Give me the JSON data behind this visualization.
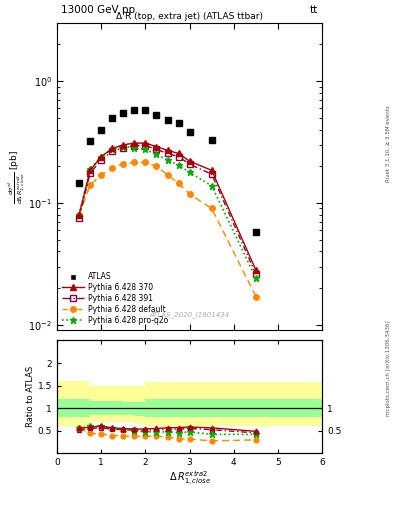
{
  "title_top": "13000 GeV pp",
  "title_right": "tt",
  "plot_title": "Δ R (top, extra jet) (ATLAS ttbar)",
  "watermark": "ATLAS_2020_I1801434",
  "rivet_label": "Rivet 3.1.10, ≥ 3.5M events",
  "mcplots_label": "mcplots.cern.ch [arXiv:1306.3436]",
  "xlim": [
    0,
    6
  ],
  "ylim_main": [
    0.009,
    3.0
  ],
  "atlas_x": [
    0.5,
    0.75,
    1.0,
    1.25,
    1.5,
    1.75,
    2.0,
    2.25,
    2.5,
    2.75,
    3.0,
    3.5,
    4.5
  ],
  "atlas_y": [
    0.145,
    0.32,
    0.4,
    0.5,
    0.55,
    0.58,
    0.58,
    0.53,
    0.48,
    0.45,
    0.38,
    0.33,
    0.058
  ],
  "py370_x": [
    0.5,
    0.75,
    1.0,
    1.25,
    1.5,
    1.75,
    2.0,
    2.25,
    2.5,
    2.75,
    3.0,
    3.5,
    4.5
  ],
  "py370_y": [
    0.08,
    0.185,
    0.24,
    0.28,
    0.3,
    0.31,
    0.31,
    0.29,
    0.27,
    0.255,
    0.22,
    0.185,
    0.028
  ],
  "py391_x": [
    0.5,
    0.75,
    1.0,
    1.25,
    1.5,
    1.75,
    2.0,
    2.25,
    2.5,
    2.75,
    3.0,
    3.5,
    4.5
  ],
  "py391_y": [
    0.075,
    0.175,
    0.225,
    0.265,
    0.285,
    0.295,
    0.295,
    0.275,
    0.255,
    0.24,
    0.208,
    0.172,
    0.026
  ],
  "pydef_x": [
    0.5,
    0.75,
    1.0,
    1.25,
    1.5,
    1.75,
    2.0,
    2.25,
    2.5,
    2.75,
    3.0,
    3.5,
    4.5
  ],
  "pydef_y": [
    0.08,
    0.14,
    0.17,
    0.195,
    0.21,
    0.215,
    0.215,
    0.2,
    0.17,
    0.145,
    0.118,
    0.09,
    0.017
  ],
  "pyq2o_x": [
    0.5,
    0.75,
    1.0,
    1.25,
    1.5,
    1.75,
    2.0,
    2.25,
    2.5,
    2.75,
    3.0,
    3.5,
    4.5
  ],
  "pyq2o_y": [
    0.08,
    0.19,
    0.24,
    0.275,
    0.29,
    0.285,
    0.275,
    0.25,
    0.225,
    0.205,
    0.178,
    0.138,
    0.024
  ],
  "ratio_py370": [
    0.55,
    0.578,
    0.6,
    0.56,
    0.545,
    0.534,
    0.534,
    0.547,
    0.563,
    0.567,
    0.579,
    0.561,
    0.483
  ],
  "ratio_py391": [
    0.517,
    0.547,
    0.563,
    0.53,
    0.518,
    0.509,
    0.509,
    0.519,
    0.531,
    0.533,
    0.547,
    0.521,
    0.448
  ],
  "ratio_pydef": [
    0.552,
    0.438,
    0.425,
    0.39,
    0.382,
    0.371,
    0.371,
    0.377,
    0.354,
    0.322,
    0.311,
    0.273,
    0.293
  ],
  "ratio_pyq2o": [
    0.552,
    0.594,
    0.6,
    0.55,
    0.527,
    0.491,
    0.474,
    0.472,
    0.469,
    0.456,
    0.468,
    0.418,
    0.414
  ],
  "step_edges": [
    0.0,
    0.5,
    0.75,
    1.0,
    1.25,
    1.5,
    1.75,
    2.0,
    2.25,
    2.5,
    2.75,
    3.0,
    3.5,
    4.5,
    6.0
  ],
  "yellow_lo_steps": [
    0.6,
    0.6,
    0.68,
    0.68,
    0.68,
    0.68,
    0.65,
    0.6,
    0.6,
    0.6,
    0.6,
    0.6,
    0.6,
    0.6
  ],
  "yellow_hi_steps": [
    1.6,
    1.6,
    1.5,
    1.5,
    1.5,
    1.48,
    1.48,
    1.58,
    1.58,
    1.58,
    1.58,
    1.58,
    1.58,
    1.58
  ],
  "green_lo_steps": [
    0.8,
    0.8,
    0.85,
    0.85,
    0.85,
    0.85,
    0.83,
    0.8,
    0.8,
    0.8,
    0.8,
    0.8,
    0.8,
    0.8
  ],
  "green_hi_steps": [
    1.2,
    1.2,
    1.15,
    1.15,
    1.15,
    1.13,
    1.13,
    1.2,
    1.2,
    1.2,
    1.2,
    1.2,
    1.2,
    1.2
  ],
  "color_atlas": "#000000",
  "color_py370": "#aa0000",
  "color_py391": "#880044",
  "color_pydef": "#ff8800",
  "color_pyq2o": "#00aa00"
}
